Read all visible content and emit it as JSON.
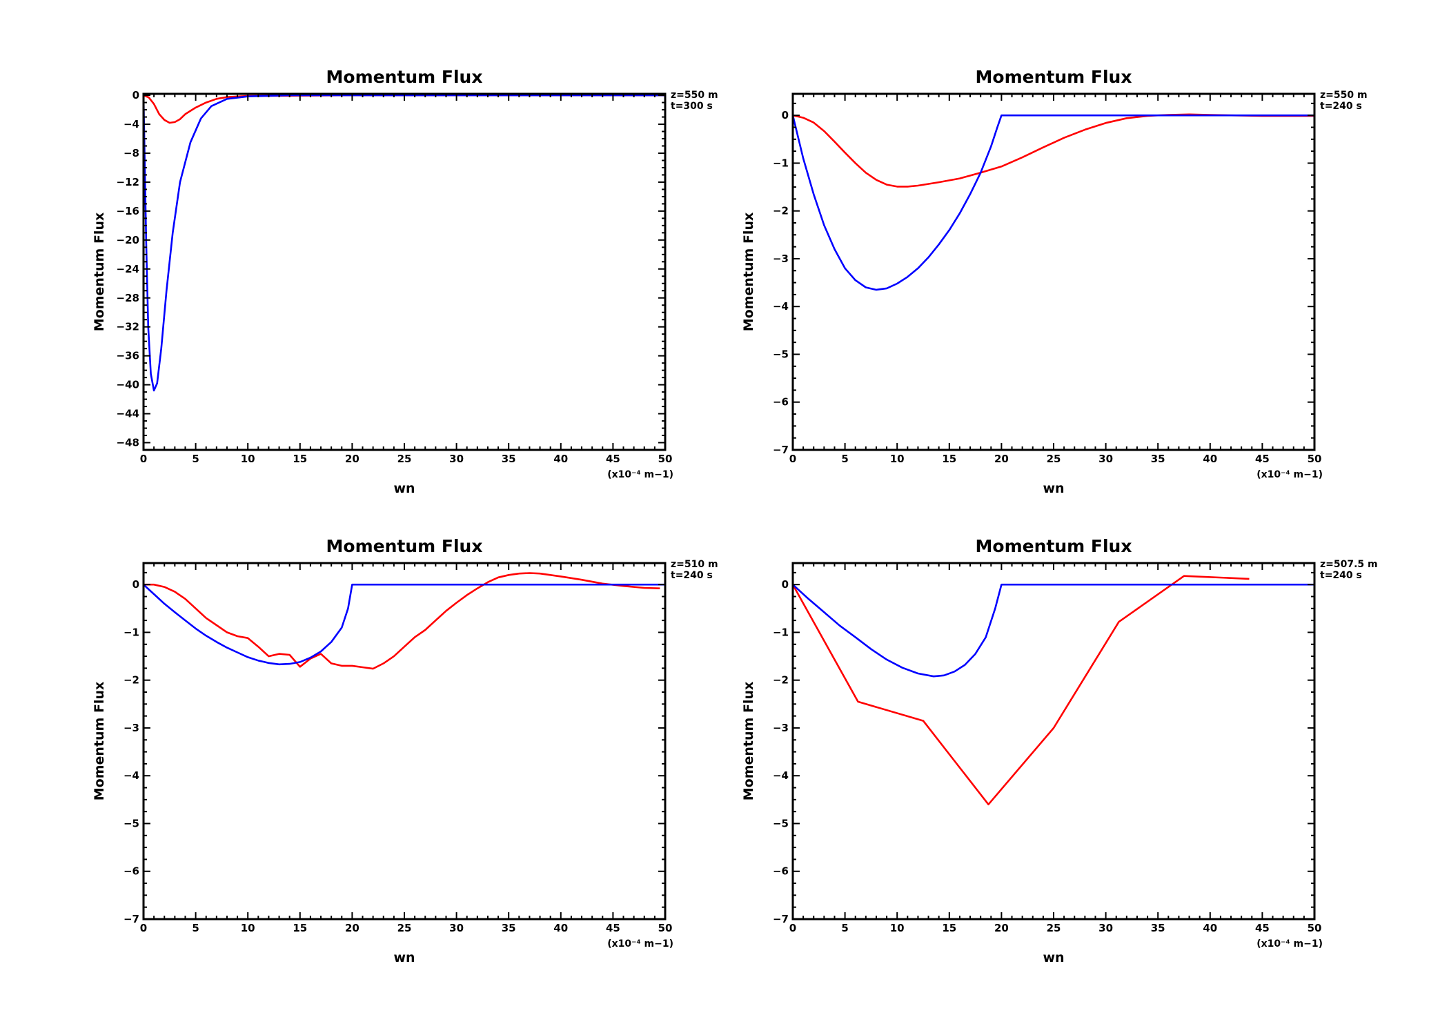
{
  "chart_data": [
    {
      "type": "line",
      "title": "Momentum Flux",
      "xlabel": "wn",
      "ylabel": "Momentum Flux",
      "x_unit_note": "(x10⁻⁴ m−1)",
      "annotations": [
        "z=550 m",
        "t=300 s"
      ],
      "xlim": [
        0,
        50
      ],
      "ylim": [
        -49,
        0.2
      ],
      "xticks": [
        0,
        5,
        10,
        15,
        20,
        25,
        30,
        35,
        40,
        45,
        50
      ],
      "yticks": [
        0,
        -4,
        -8,
        -12,
        -16,
        -20,
        -24,
        -28,
        -32,
        -36,
        -40,
        -44,
        -48
      ],
      "grid": false,
      "series": [
        {
          "color": "#ff0000",
          "points": [
            [
              0,
              0
            ],
            [
              0.5,
              -0.3
            ],
            [
              1,
              -1.2
            ],
            [
              1.5,
              -2.6
            ],
            [
              2,
              -3.4
            ],
            [
              2.5,
              -3.8
            ],
            [
              3,
              -3.7
            ],
            [
              3.5,
              -3.3
            ],
            [
              4,
              -2.6
            ],
            [
              5,
              -1.7
            ],
            [
              6,
              -1.0
            ],
            [
              7,
              -0.5
            ],
            [
              8,
              -0.25
            ],
            [
              10,
              -0.1
            ],
            [
              15,
              -0.05
            ],
            [
              20,
              0
            ],
            [
              50,
              0
            ]
          ]
        },
        {
          "color": "#0000ff",
          "points": [
            [
              0,
              0
            ],
            [
              0.1,
              -8
            ],
            [
              0.25,
              -20
            ],
            [
              0.45,
              -32
            ],
            [
              0.7,
              -38.5
            ],
            [
              1,
              -40.8
            ],
            [
              1.3,
              -39.8
            ],
            [
              1.7,
              -35
            ],
            [
              2.2,
              -27
            ],
            [
              2.8,
              -19
            ],
            [
              3.5,
              -12
            ],
            [
              4.5,
              -6.5
            ],
            [
              5.5,
              -3.2
            ],
            [
              6.5,
              -1.5
            ],
            [
              8,
              -0.5
            ],
            [
              10,
              -0.15
            ],
            [
              14,
              0
            ],
            [
              50,
              0
            ]
          ]
        }
      ]
    },
    {
      "type": "line",
      "title": "Momentum Flux",
      "xlabel": "wn",
      "ylabel": "Momentum Flux",
      "x_unit_note": "(x10⁻⁴ m−1)",
      "annotations": [
        "z=550 m",
        "t=240 s"
      ],
      "xlim": [
        0,
        50
      ],
      "ylim": [
        -7,
        0.45
      ],
      "xticks": [
        0,
        5,
        10,
        15,
        20,
        25,
        30,
        35,
        40,
        45,
        50
      ],
      "yticks": [
        0,
        -1,
        -2,
        -3,
        -4,
        -5,
        -6,
        -7
      ],
      "grid": false,
      "series": [
        {
          "color": "#ff0000",
          "points": [
            [
              0,
              0
            ],
            [
              1,
              -0.05
            ],
            [
              2,
              -0.15
            ],
            [
              3,
              -0.33
            ],
            [
              4,
              -0.55
            ],
            [
              5,
              -0.78
            ],
            [
              6,
              -1.0
            ],
            [
              7,
              -1.2
            ],
            [
              8,
              -1.35
            ],
            [
              9,
              -1.45
            ],
            [
              10,
              -1.49
            ],
            [
              11,
              -1.49
            ],
            [
              12,
              -1.47
            ],
            [
              14,
              -1.4
            ],
            [
              16,
              -1.32
            ],
            [
              18,
              -1.2
            ],
            [
              20,
              -1.07
            ],
            [
              22,
              -0.88
            ],
            [
              24,
              -0.67
            ],
            [
              26,
              -0.47
            ],
            [
              28,
              -0.3
            ],
            [
              30,
              -0.16
            ],
            [
              32,
              -0.06
            ],
            [
              34,
              -0.01
            ],
            [
              36,
              0.01
            ],
            [
              38,
              0.02
            ],
            [
              40,
              0.01
            ],
            [
              42,
              0
            ],
            [
              45,
              -0.01
            ],
            [
              48,
              -0.01
            ],
            [
              50,
              -0.01
            ]
          ]
        },
        {
          "color": "#0000ff",
          "points": [
            [
              0,
              0
            ],
            [
              1,
              -0.9
            ],
            [
              2,
              -1.65
            ],
            [
              3,
              -2.3
            ],
            [
              4,
              -2.8
            ],
            [
              5,
              -3.2
            ],
            [
              6,
              -3.45
            ],
            [
              7,
              -3.6
            ],
            [
              8,
              -3.65
            ],
            [
              9,
              -3.62
            ],
            [
              10,
              -3.52
            ],
            [
              11,
              -3.38
            ],
            [
              12,
              -3.2
            ],
            [
              13,
              -2.97
            ],
            [
              14,
              -2.7
            ],
            [
              15,
              -2.4
            ],
            [
              16,
              -2.05
            ],
            [
              17,
              -1.65
            ],
            [
              18,
              -1.2
            ],
            [
              19,
              -0.65
            ],
            [
              19.6,
              -0.25
            ],
            [
              20,
              0
            ],
            [
              50,
              0
            ]
          ]
        }
      ]
    },
    {
      "type": "line",
      "title": "Momentum Flux",
      "xlabel": "wn",
      "ylabel": "Momentum Flux",
      "x_unit_note": "(x10⁻⁴ m−1)",
      "annotations": [
        "z=510 m",
        "t=240 s"
      ],
      "xlim": [
        0,
        50
      ],
      "ylim": [
        -7,
        0.45
      ],
      "xticks": [
        0,
        5,
        10,
        15,
        20,
        25,
        30,
        35,
        40,
        45,
        50
      ],
      "yticks": [
        0,
        -1,
        -2,
        -3,
        -4,
        -5,
        -6,
        -7
      ],
      "grid": false,
      "series": [
        {
          "color": "#ff0000",
          "points": [
            [
              0,
              0
            ],
            [
              1,
              0
            ],
            [
              2,
              -0.05
            ],
            [
              3,
              -0.15
            ],
            [
              4,
              -0.3
            ],
            [
              5,
              -0.5
            ],
            [
              6,
              -0.7
            ],
            [
              7,
              -0.85
            ],
            [
              8,
              -1.0
            ],
            [
              9,
              -1.08
            ],
            [
              10,
              -1.12
            ],
            [
              11,
              -1.3
            ],
            [
              12,
              -1.5
            ],
            [
              13,
              -1.45
            ],
            [
              14,
              -1.47
            ],
            [
              15,
              -1.72
            ],
            [
              16,
              -1.55
            ],
            [
              17,
              -1.45
            ],
            [
              18,
              -1.65
            ],
            [
              19,
              -1.7
            ],
            [
              20,
              -1.7
            ],
            [
              21,
              -1.73
            ],
            [
              22,
              -1.76
            ],
            [
              23,
              -1.65
            ],
            [
              24,
              -1.5
            ],
            [
              25,
              -1.3
            ],
            [
              26,
              -1.1
            ],
            [
              27,
              -0.95
            ],
            [
              28,
              -0.75
            ],
            [
              29,
              -0.55
            ],
            [
              30,
              -0.38
            ],
            [
              31,
              -0.22
            ],
            [
              32,
              -0.08
            ],
            [
              33,
              0.05
            ],
            [
              34,
              0.15
            ],
            [
              35,
              0.2
            ],
            [
              36,
              0.23
            ],
            [
              37,
              0.24
            ],
            [
              38,
              0.23
            ],
            [
              40,
              0.17
            ],
            [
              42,
              0.1
            ],
            [
              44,
              0.02
            ],
            [
              46,
              -0.03
            ],
            [
              48,
              -0.07
            ],
            [
              49.5,
              -0.08
            ]
          ]
        },
        {
          "color": "#0000ff",
          "points": [
            [
              0,
              0
            ],
            [
              1,
              -0.2
            ],
            [
              2,
              -0.4
            ],
            [
              3,
              -0.58
            ],
            [
              4,
              -0.75
            ],
            [
              5,
              -0.92
            ],
            [
              6,
              -1.07
            ],
            [
              7,
              -1.2
            ],
            [
              8,
              -1.32
            ],
            [
              9,
              -1.42
            ],
            [
              10,
              -1.52
            ],
            [
              11,
              -1.59
            ],
            [
              12,
              -1.64
            ],
            [
              13,
              -1.67
            ],
            [
              14,
              -1.66
            ],
            [
              15,
              -1.62
            ],
            [
              16,
              -1.53
            ],
            [
              17,
              -1.4
            ],
            [
              18,
              -1.2
            ],
            [
              19,
              -0.9
            ],
            [
              19.6,
              -0.5
            ],
            [
              20,
              0
            ],
            [
              50,
              0
            ]
          ]
        }
      ]
    },
    {
      "type": "line",
      "title": "Momentum Flux",
      "xlabel": "wn",
      "ylabel": "Momentum Flux",
      "x_unit_note": "(x10⁻⁴ m−1)",
      "annotations": [
        "z=507.5 m",
        "t=240 s"
      ],
      "xlim": [
        0,
        50
      ],
      "ylim": [
        -7,
        0.45
      ],
      "xticks": [
        0,
        5,
        10,
        15,
        20,
        25,
        30,
        35,
        40,
        45,
        50
      ],
      "yticks": [
        0,
        -1,
        -2,
        -3,
        -4,
        -5,
        -6,
        -7
      ],
      "grid": false,
      "series": [
        {
          "color": "#ff0000",
          "points": [
            [
              0,
              0
            ],
            [
              6.25,
              -2.45
            ],
            [
              12.5,
              -2.85
            ],
            [
              18.75,
              -4.6
            ],
            [
              25,
              -3.0
            ],
            [
              31.25,
              -0.78
            ],
            [
              37.5,
              0.18
            ],
            [
              43.75,
              0.12
            ]
          ]
        },
        {
          "color": "#0000ff",
          "points": [
            [
              0,
              0
            ],
            [
              1.5,
              -0.3
            ],
            [
              3,
              -0.58
            ],
            [
              4.5,
              -0.86
            ],
            [
              6,
              -1.1
            ],
            [
              7.5,
              -1.35
            ],
            [
              9,
              -1.57
            ],
            [
              10.5,
              -1.74
            ],
            [
              12,
              -1.86
            ],
            [
              13.5,
              -1.92
            ],
            [
              14.5,
              -1.9
            ],
            [
              15.5,
              -1.82
            ],
            [
              16.5,
              -1.68
            ],
            [
              17.5,
              -1.45
            ],
            [
              18.5,
              -1.1
            ],
            [
              19.4,
              -0.5
            ],
            [
              20,
              0
            ],
            [
              50,
              0
            ]
          ]
        }
      ]
    }
  ]
}
